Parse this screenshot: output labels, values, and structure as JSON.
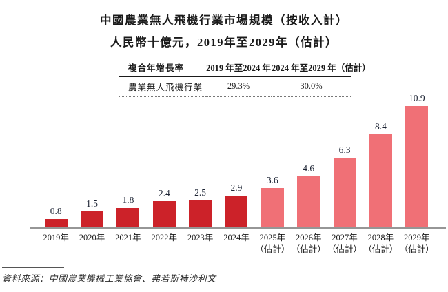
{
  "title": {
    "line1": "中國農業無人飛機行業市場規模（按收入計）",
    "line2": "人民幣十億元，2019年至2029年（估計）"
  },
  "cagr_table": {
    "headers": [
      "複合年增長率",
      "2019 年至2024 年",
      "2024 年至2029 年（估計）"
    ],
    "row": [
      "農業無人飛機行業",
      "29.3%",
      "30.0%"
    ]
  },
  "chart_data": {
    "type": "bar",
    "title": "中國農業無人飛機行業市場規模（按收入計）",
    "ylabel": "人民幣十億元",
    "categories": [
      "2019年",
      "2020年",
      "2021年",
      "2022年",
      "2023年",
      "2024年",
      "2025年（估計）",
      "2026年（估計）",
      "2027年（估計）",
      "2028年（估計）",
      "2029年（估計）"
    ],
    "values": [
      0.8,
      1.5,
      1.8,
      2.4,
      2.5,
      2.9,
      3.6,
      4.6,
      6.3,
      8.4,
      10.9
    ],
    "ylim": [
      0,
      10.9
    ],
    "grid": false,
    "legend": "none",
    "value_labels": "above-bars",
    "bars": [
      {
        "label": "2019年",
        "sublabel": "",
        "value": 0.8,
        "kind": "actual"
      },
      {
        "label": "2020年",
        "sublabel": "",
        "value": 1.5,
        "kind": "actual"
      },
      {
        "label": "2021年",
        "sublabel": "",
        "value": 1.8,
        "kind": "actual"
      },
      {
        "label": "2022年",
        "sublabel": "",
        "value": 2.4,
        "kind": "actual"
      },
      {
        "label": "2023年",
        "sublabel": "",
        "value": 2.5,
        "kind": "actual"
      },
      {
        "label": "2024年",
        "sublabel": "",
        "value": 2.9,
        "kind": "actual"
      },
      {
        "label": "2025年",
        "sublabel": "（估計）",
        "value": 3.6,
        "kind": "estimate"
      },
      {
        "label": "2026年",
        "sublabel": "（估計）",
        "value": 4.6,
        "kind": "estimate"
      },
      {
        "label": "2027年",
        "sublabel": "（估計）",
        "value": 6.3,
        "kind": "estimate"
      },
      {
        "label": "2028年",
        "sublabel": "（估計）",
        "value": 8.4,
        "kind": "estimate"
      },
      {
        "label": "2029年",
        "sublabel": "（估計）",
        "value": 10.9,
        "kind": "estimate"
      }
    ]
  },
  "colors": {
    "actual_bar": "#CC2229",
    "estimate_bar": "#F07076",
    "axis_line": "#969696"
  },
  "source_note": "資料來源：中國農業機械工業協會、弗若斯特沙利文"
}
